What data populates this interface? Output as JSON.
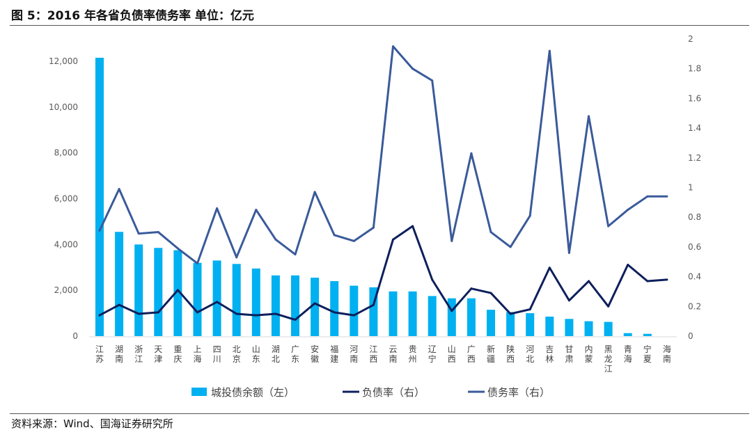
{
  "title": "图 5：2016 年各省负债率债务率    单位：亿元",
  "source": "资料来源：Wind、国海证券研究所",
  "chart_data": {
    "type": "bar+line",
    "categories": [
      "江苏",
      "湖南",
      "浙江",
      "天津",
      "重庆",
      "上海",
      "四川",
      "北京",
      "山东",
      "湖北",
      "广东",
      "安徽",
      "福建",
      "河南",
      "江西",
      "云南",
      "贵州",
      "辽宁",
      "山西",
      "广西",
      "新疆",
      "陕西",
      "河北",
      "吉林",
      "甘肃",
      "内蒙",
      "黑龙江",
      "青海",
      "宁夏",
      "海南"
    ],
    "series": [
      {
        "name": "城投债余额（左）",
        "type": "bar",
        "axis": "left",
        "color": "#00b0f0",
        "values": [
          12150,
          4550,
          4000,
          3850,
          3750,
          3200,
          3300,
          3150,
          2950,
          2650,
          2650,
          2550,
          2400,
          2200,
          2130,
          1950,
          1950,
          1750,
          1650,
          1650,
          1150,
          1050,
          1000,
          850,
          750,
          650,
          620,
          130,
          100,
          0
        ]
      },
      {
        "name": "负债率（右）",
        "type": "line",
        "axis": "right",
        "color": "#0d1f5c",
        "values": [
          0.14,
          0.21,
          0.15,
          0.16,
          0.31,
          0.16,
          0.23,
          0.15,
          0.14,
          0.15,
          0.11,
          0.22,
          0.16,
          0.14,
          0.21,
          0.65,
          0.74,
          0.38,
          0.17,
          0.32,
          0.29,
          0.15,
          0.18,
          0.46,
          0.24,
          0.37,
          0.2,
          0.48,
          0.37,
          0.38
        ]
      },
      {
        "name": "债务率（右）",
        "type": "line",
        "axis": "right",
        "color": "#3a5a9a",
        "values": [
          0.71,
          0.99,
          0.69,
          0.7,
          0.59,
          0.49,
          0.86,
          0.53,
          0.85,
          0.65,
          0.55,
          0.97,
          0.68,
          0.64,
          0.73,
          1.95,
          1.8,
          1.72,
          0.64,
          1.23,
          0.7,
          0.6,
          0.81,
          1.92,
          0.56,
          1.48,
          0.74,
          0.85,
          0.94,
          0.94
        ]
      }
    ],
    "left_axis": {
      "ticks": [
        "0",
        "2,000",
        "4,000",
        "6,000",
        "8,000",
        "10,000",
        "12,000"
      ],
      "values": [
        0,
        2000,
        4000,
        6000,
        8000,
        10000,
        12000
      ]
    },
    "right_axis": {
      "ticks": [
        "0",
        "0.2",
        "0.4",
        "0.6",
        "0.8",
        "1",
        "1.2",
        "1.4",
        "1.6",
        "1.8",
        "2"
      ],
      "values": [
        0,
        0.2,
        0.4,
        0.6,
        0.8,
        1,
        1.2,
        1.4,
        1.6,
        1.8,
        2
      ]
    },
    "grid": false,
    "legend": "bottom"
  }
}
